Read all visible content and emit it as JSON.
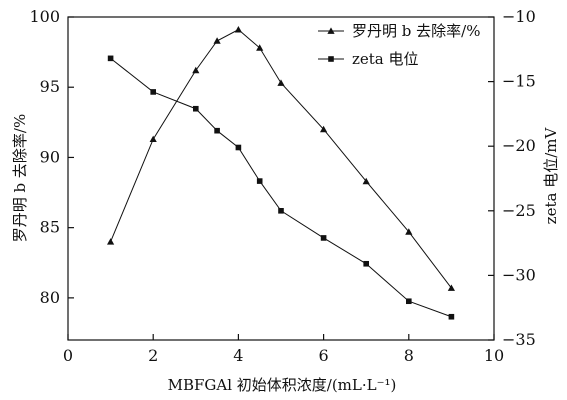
{
  "chart_data": {
    "type": "line",
    "xlabel": "MBFGAl 初始体积浓度/(mL·L⁻¹)",
    "ylabel_left": "罗丹明 b 去除率/%",
    "ylabel_right": "zeta 电位/mV",
    "xlim": [
      0,
      10
    ],
    "ylim_left": [
      77,
      100
    ],
    "ylim_right": [
      -35,
      -10
    ],
    "x_ticks": [
      0,
      2,
      4,
      6,
      8,
      10
    ],
    "y_left_ticks": [
      80,
      85,
      90,
      95,
      100
    ],
    "y_right_ticks": [
      -35,
      -30,
      -25,
      -20,
      -15,
      -10
    ],
    "grid": false,
    "legend_placement": "top-right",
    "series": [
      {
        "name": "罗丹明 b 去除率/%",
        "axis": "left",
        "marker": "triangle",
        "x": [
          1,
          2,
          3,
          3.5,
          4,
          4.5,
          5,
          6,
          7,
          8,
          9
        ],
        "y": [
          84.0,
          91.3,
          96.2,
          98.3,
          99.1,
          97.8,
          95.3,
          92.0,
          88.3,
          84.7,
          80.7
        ]
      },
      {
        "name": "zeta 电位",
        "axis": "right",
        "marker": "square",
        "x": [
          1,
          2,
          3,
          3.5,
          4,
          4.5,
          5,
          6,
          7,
          8,
          9
        ],
        "y": [
          -13.2,
          -15.8,
          -17.1,
          -18.8,
          -20.1,
          -22.7,
          -25.0,
          -27.1,
          -29.1,
          -32.0,
          -33.2
        ]
      }
    ]
  }
}
